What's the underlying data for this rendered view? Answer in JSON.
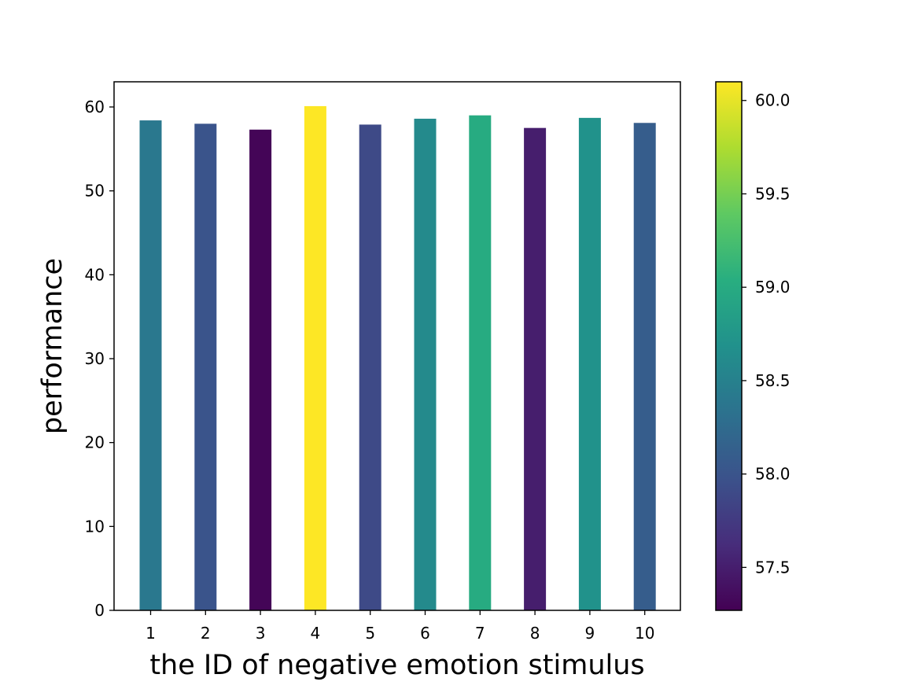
{
  "chart_data": {
    "type": "bar",
    "title": "",
    "xlabel": "the ID of negative emotion stimulus",
    "ylabel": "performance",
    "categories": [
      "1",
      "2",
      "3",
      "4",
      "5",
      "6",
      "7",
      "8",
      "9",
      "10"
    ],
    "values": [
      58.4,
      58.0,
      57.3,
      60.1,
      57.9,
      58.6,
      59.0,
      57.5,
      58.7,
      58.1
    ],
    "ylim": [
      0,
      63
    ],
    "yticks": [
      "0",
      "10",
      "20",
      "30",
      "40",
      "50",
      "60"
    ],
    "grid": false,
    "legend": "none",
    "colorbar": {
      "colormap": "viridis",
      "range": [
        57.27,
        60.1
      ],
      "ticks": [
        "57.5",
        "58.0",
        "58.5",
        "59.0",
        "59.5",
        "60.0"
      ]
    }
  }
}
